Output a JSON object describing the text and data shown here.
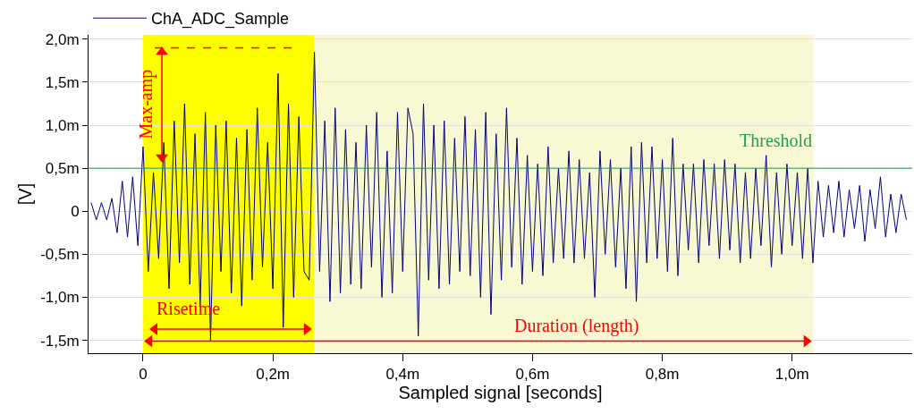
{
  "chart_data": {
    "type": "line",
    "xlabel": "Sampled signal [seconds]",
    "ylabel": "[V]",
    "xlim": [
      -0.084,
      1.185
    ],
    "ylim": [
      -1.65,
      2.05
    ],
    "xticks": [
      {
        "value": 0,
        "label": "0"
      },
      {
        "value": 0.2,
        "label": "0,2m"
      },
      {
        "value": 0.4,
        "label": "0,4m"
      },
      {
        "value": 0.6,
        "label": "0,6m"
      },
      {
        "value": 0.8,
        "label": "0,8m"
      },
      {
        "value": 1.0,
        "label": "1,0m"
      }
    ],
    "yticks": [
      {
        "value": -1.5,
        "label": "-1,5m"
      },
      {
        "value": -1.0,
        "label": "-1,0m"
      },
      {
        "value": -0.5,
        "label": "-0,5m"
      },
      {
        "value": 0,
        "label": "0"
      },
      {
        "value": 0.5,
        "label": "0,5m"
      },
      {
        "value": 1.0,
        "label": "1,0m"
      },
      {
        "value": 1.5,
        "label": "1,5m"
      },
      {
        "value": 2.0,
        "label": "2,0m"
      }
    ],
    "grid": "y",
    "legend": "top left",
    "marker": "none",
    "line_style": "solid",
    "bands": [
      {
        "axis": "x",
        "from": 0,
        "to": 0.264,
        "color": "#ffff00"
      },
      {
        "axis": "x",
        "from": 0.264,
        "to": 1.033,
        "color": "#f8f8d2"
      }
    ],
    "ref_lines": [
      {
        "axis": "y",
        "value": 0.5,
        "label": "Threshold",
        "color": "#1fa050"
      }
    ],
    "annotations": [
      "Max-amp",
      "Risetime",
      "Duration (length)"
    ],
    "series": [
      {
        "name": "ChA_ADC_Sample",
        "color": "#000080",
        "x": [
          -0.08,
          -0.072,
          -0.064,
          -0.056,
          -0.048,
          -0.04,
          -0.032,
          -0.024,
          -0.016,
          -0.008,
          0,
          0.008,
          0.016,
          0.024,
          0.032,
          0.04,
          0.048,
          0.056,
          0.064,
          0.072,
          0.08,
          0.088,
          0.096,
          0.104,
          0.112,
          0.12,
          0.128,
          0.136,
          0.144,
          0.152,
          0.16,
          0.168,
          0.176,
          0.184,
          0.192,
          0.2,
          0.208,
          0.216,
          0.224,
          0.232,
          0.24,
          0.248,
          0.256,
          0.264,
          0.272,
          0.28,
          0.288,
          0.296,
          0.304,
          0.312,
          0.32,
          0.328,
          0.336,
          0.344,
          0.352,
          0.36,
          0.368,
          0.376,
          0.384,
          0.392,
          0.4,
          0.408,
          0.416,
          0.424,
          0.432,
          0.44,
          0.448,
          0.456,
          0.464,
          0.472,
          0.48,
          0.488,
          0.496,
          0.504,
          0.512,
          0.52,
          0.528,
          0.536,
          0.544,
          0.552,
          0.56,
          0.568,
          0.576,
          0.584,
          0.592,
          0.6,
          0.608,
          0.616,
          0.624,
          0.632,
          0.64,
          0.648,
          0.656,
          0.664,
          0.672,
          0.68,
          0.688,
          0.696,
          0.704,
          0.712,
          0.72,
          0.728,
          0.736,
          0.744,
          0.752,
          0.76,
          0.768,
          0.776,
          0.784,
          0.792,
          0.8,
          0.808,
          0.816,
          0.824,
          0.832,
          0.84,
          0.848,
          0.856,
          0.864,
          0.872,
          0.88,
          0.888,
          0.896,
          0.904,
          0.912,
          0.92,
          0.928,
          0.936,
          0.944,
          0.952,
          0.96,
          0.968,
          0.976,
          0.984,
          0.992,
          1.0,
          1.008,
          1.016,
          1.024,
          1.032,
          1.04,
          1.048,
          1.056,
          1.064,
          1.072,
          1.08,
          1.088,
          1.096,
          1.104,
          1.112,
          1.12,
          1.128,
          1.136,
          1.144,
          1.152,
          1.16,
          1.168,
          1.176
        ],
        "values": [
          0.1,
          -0.1,
          0.1,
          -0.1,
          0.15,
          -0.25,
          0.35,
          -0.3,
          0.4,
          -0.4,
          0.75,
          -0.7,
          0.45,
          -0.55,
          0.8,
          -0.9,
          1.05,
          -0.6,
          1.25,
          -0.85,
          0.9,
          -1.1,
          1.15,
          -1.5,
          1.0,
          -0.7,
          1.05,
          -0.95,
          0.85,
          -1.1,
          0.95,
          -0.8,
          1.2,
          -0.65,
          0.8,
          -0.9,
          1.6,
          -1.35,
          1.25,
          -1.0,
          1.1,
          -0.7,
          -0.8,
          1.85,
          -0.7,
          1.05,
          -1.05,
          1.2,
          -0.95,
          0.95,
          -0.85,
          0.8,
          -0.9,
          1.0,
          -0.65,
          1.15,
          -1.0,
          0.7,
          -0.95,
          1.15,
          -0.7,
          1.2,
          0.9,
          -1.45,
          1.25,
          -0.8,
          1.0,
          -0.9,
          1.05,
          -0.85,
          0.85,
          -0.7,
          1.1,
          -0.75,
          0.95,
          -1.0,
          1.15,
          -1.2,
          0.9,
          -0.8,
          1.2,
          -0.65,
          0.85,
          -0.85,
          0.65,
          -0.7,
          0.55,
          -0.75,
          0.75,
          -0.6,
          0.5,
          -0.55,
          0.7,
          -0.6,
          0.6,
          -0.55,
          0.45,
          -1.0,
          0.7,
          -0.5,
          0.6,
          -0.65,
          0.5,
          -0.9,
          0.75,
          -1.05,
          0.8,
          -0.6,
          0.75,
          -0.55,
          0.6,
          -0.7,
          0.85,
          -0.75,
          0.55,
          -0.45,
          0.55,
          -0.6,
          0.6,
          -0.4,
          0.55,
          -0.55,
          0.6,
          -0.45,
          0.55,
          -0.6,
          0.45,
          -0.55,
          0.5,
          -0.4,
          0.65,
          -0.65,
          0.45,
          -0.5,
          0.55,
          -0.4,
          0.45,
          -0.55,
          0.5,
          -0.6,
          0.35,
          -0.3,
          0.3,
          -0.25,
          0.35,
          -0.3,
          0.25,
          -0.2,
          0.3,
          -0.35,
          0.25,
          -0.2,
          0.4,
          -0.3,
          0.2,
          -0.25,
          0.2,
          -0.1
        ]
      },
      {
        "color": "#ff0000",
        "line_style": "dashed",
        "x": [
          0.018,
          0.231
        ],
        "values": [
          1.9,
          1.9
        ]
      },
      {
        "color": "#ff0000",
        "marker": "triangle",
        "x": [
          0.029,
          0.029
        ],
        "values": [
          1.85,
          0.63
        ]
      },
      {
        "color": "#ff0000",
        "marker": "triangle",
        "x": [
          0.018,
          0.252
        ],
        "values": [
          -1.37,
          -1.37
        ]
      },
      {
        "color": "#ff0000",
        "marker": "triangle",
        "x": [
          0.01,
          1.022
        ],
        "values": [
          -1.51,
          -1.51
        ]
      }
    ]
  }
}
